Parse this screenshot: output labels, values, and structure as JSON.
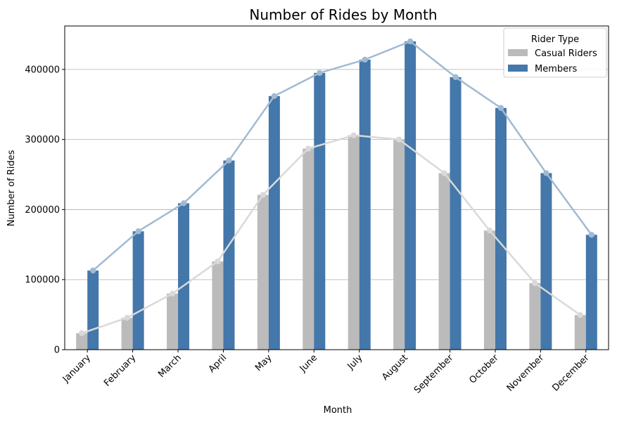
{
  "chart_data": {
    "type": "bar",
    "title": "Number of Rides by Month",
    "xlabel": "Month",
    "ylabel": "Number of Rides",
    "categories": [
      "January",
      "February",
      "March",
      "April",
      "May",
      "June",
      "July",
      "August",
      "September",
      "October",
      "November",
      "December"
    ],
    "ylim": [
      0,
      462000
    ],
    "yticks": [
      0,
      100000,
      200000,
      300000,
      400000
    ],
    "ytick_labels": [
      "0",
      "100000",
      "200000",
      "300000",
      "400000"
    ],
    "grid": "y-major",
    "legend": {
      "title": "Rider Type",
      "placement": "top-right"
    },
    "series": [
      {
        "name": "Casual Riders",
        "color": "#bbbbbb",
        "line_color": "#d9d9d9",
        "values": [
          23500,
          45500,
          80000,
          126000,
          221000,
          287000,
          306000,
          300000,
          252000,
          170000,
          95000,
          49500
        ]
      },
      {
        "name": "Members",
        "color": "#4477aa",
        "line_color": "#a1bad4",
        "values": [
          113000,
          169000,
          209000,
          270000,
          362000,
          395000,
          414000,
          440000,
          389000,
          345000,
          252000,
          164000
        ]
      }
    ],
    "overlay": "line with markers through each bar top, per series"
  }
}
